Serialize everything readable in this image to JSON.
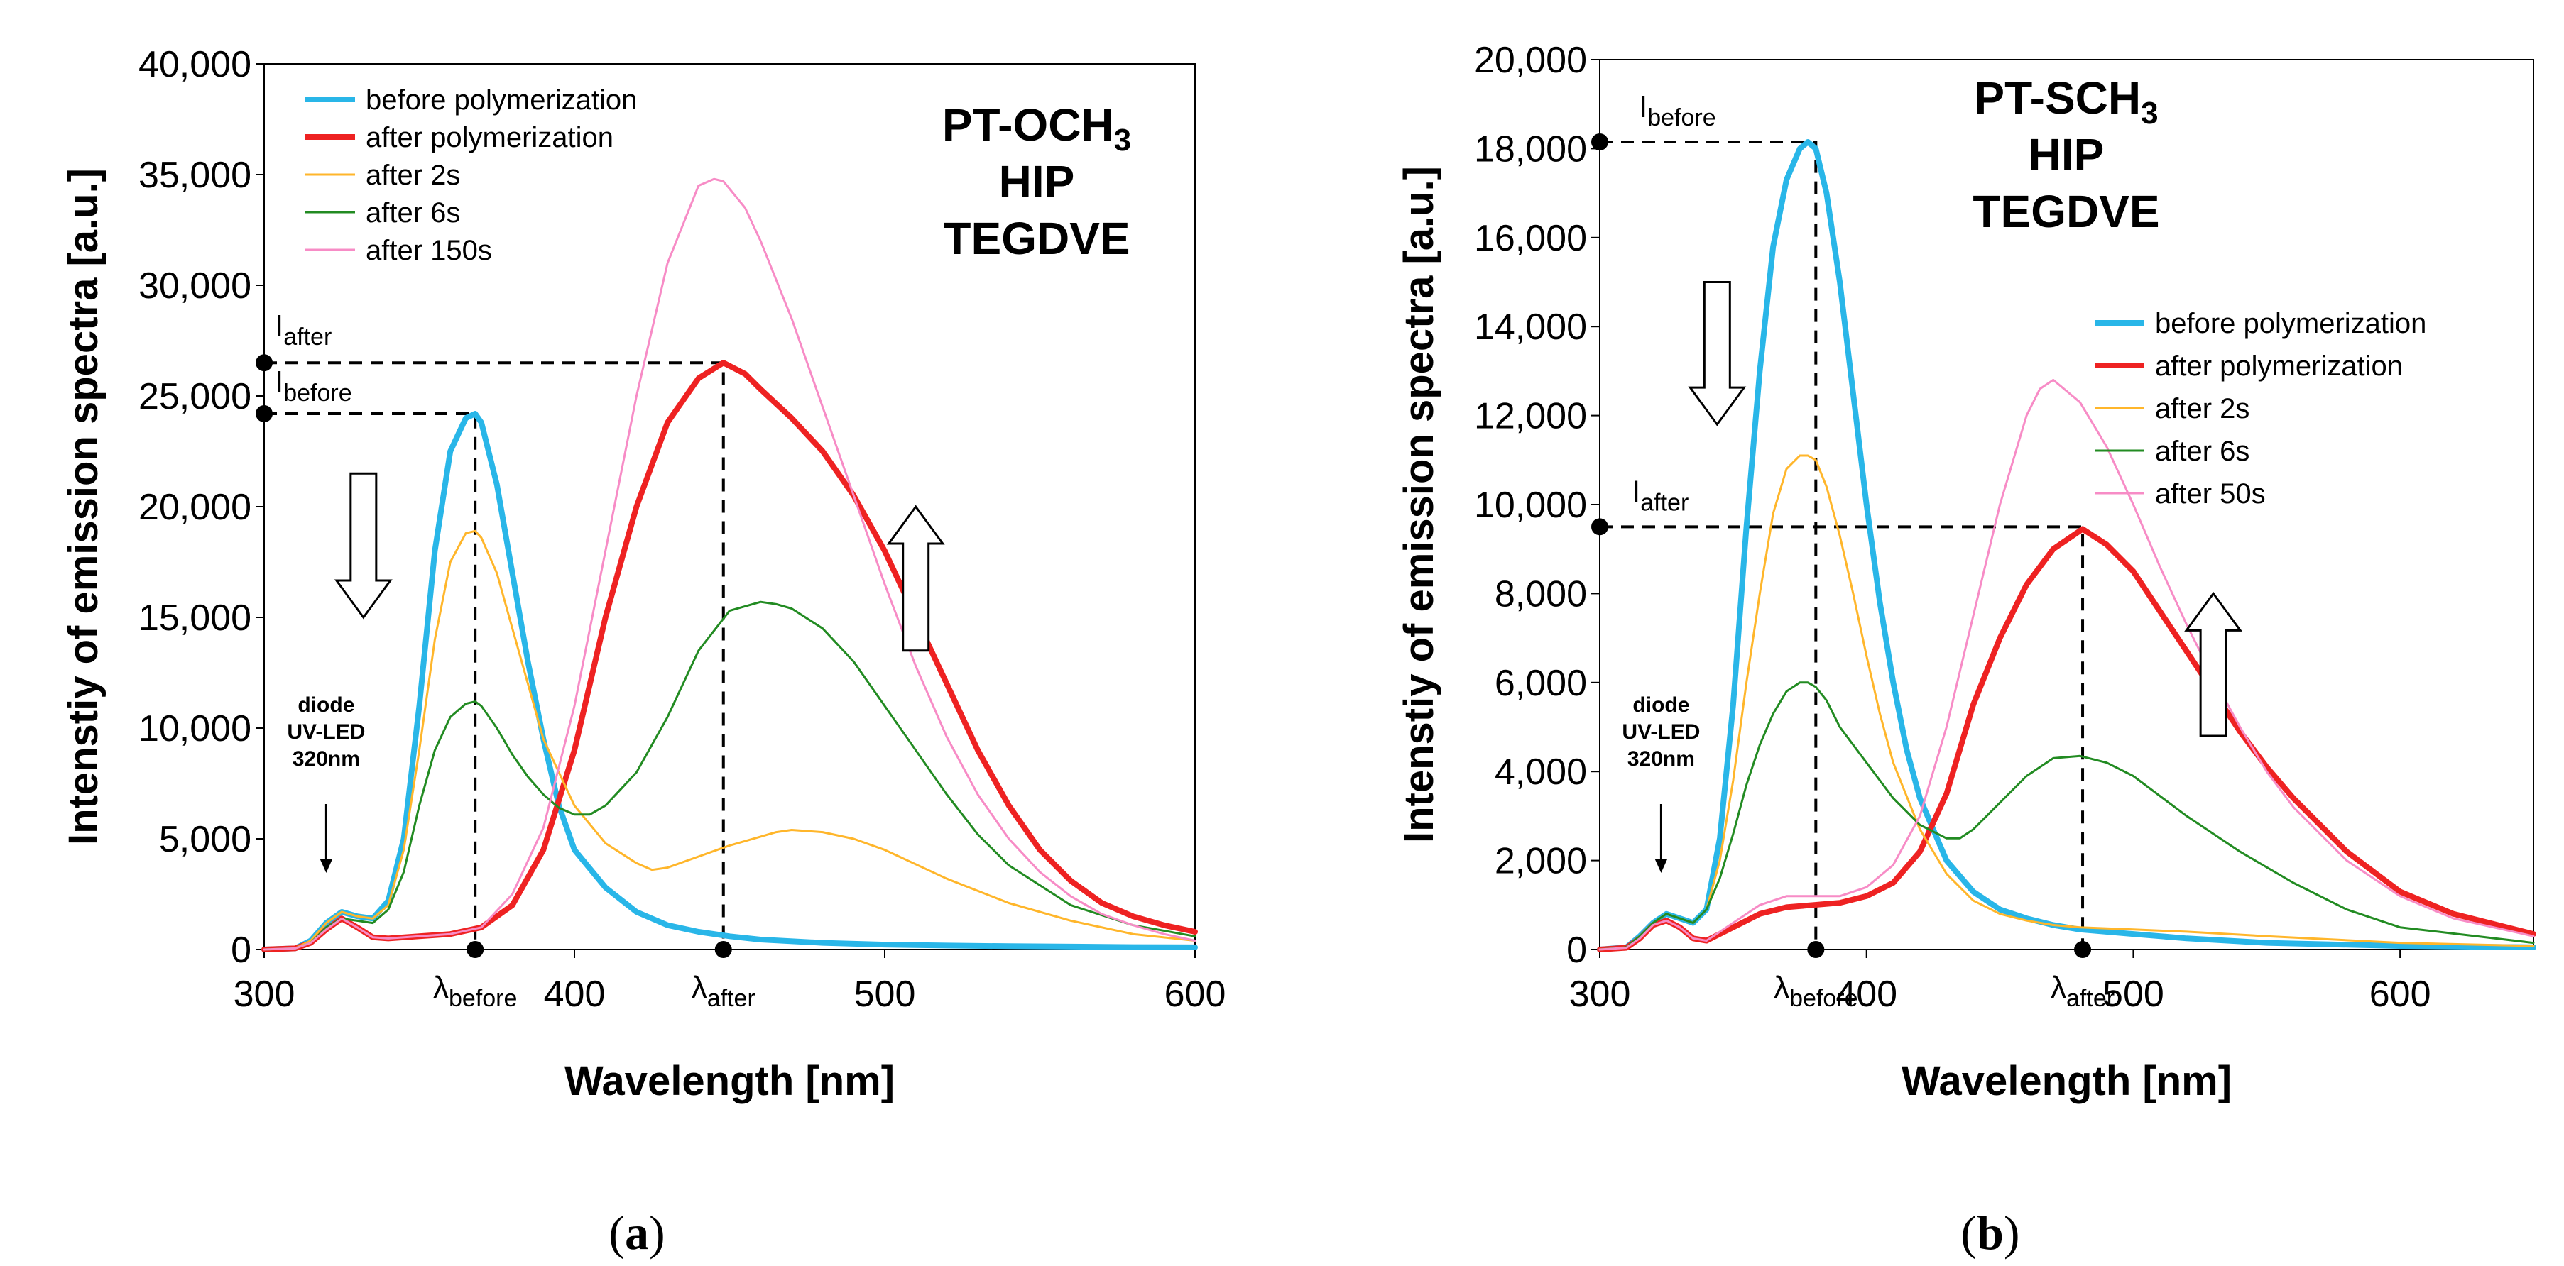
{
  "chart_data": [
    {
      "id": "a",
      "type": "line",
      "caption_open": "(",
      "caption": "a",
      "caption_close": ")",
      "xlabel": "Wavelength [nm]",
      "ylabel": "Intenstiy of emission spectra [a.u.]",
      "xlim": [
        300,
        600
      ],
      "ylim": [
        0,
        40000
      ],
      "xticks": [
        300,
        400,
        500,
        600
      ],
      "xtick_labels": [
        "300",
        "400",
        "500",
        "600"
      ],
      "yticks": [
        0,
        5000,
        10000,
        15000,
        20000,
        25000,
        30000,
        35000,
        40000
      ],
      "ytick_labels": [
        "0",
        "5,000",
        "10,000",
        "15,000",
        "20,000",
        "25,000",
        "30,000",
        "35,000",
        "40,000"
      ],
      "legend_position": "top-left",
      "sample_label": [
        "PT-OCH",
        "3",
        "HIP",
        "TEGDVE"
      ],
      "diode_label": [
        "diode",
        "UV-LED",
        "320nm"
      ],
      "diode_arrow_x": 320,
      "markers": {
        "before": {
          "x": 368,
          "y": 24200,
          "i_main": "I",
          "i_sub": "before",
          "l_main": "λ",
          "l_sub": "before"
        },
        "after": {
          "x": 448,
          "y": 26500,
          "i_main": "I",
          "i_sub": "after",
          "l_main": "λ",
          "l_sub": "after"
        }
      },
      "arrows": [
        {
          "dir": "down",
          "x": 332,
          "y_top": 21500,
          "y_bottom": 15000
        },
        {
          "dir": "up",
          "x": 510,
          "y_top": 20000,
          "y_bottom": 13500
        }
      ],
      "series": [
        {
          "name": "before polymerization",
          "color": "#29b6e8",
          "width": 8,
          "x": [
            300,
            310,
            315,
            320,
            325,
            330,
            335,
            340,
            345,
            350,
            355,
            360,
            365,
            368,
            370,
            375,
            380,
            385,
            390,
            395,
            400,
            410,
            420,
            430,
            440,
            450,
            460,
            480,
            500,
            520,
            540,
            560,
            580,
            600
          ],
          "y": [
            0,
            50,
            400,
            1200,
            1700,
            1500,
            1400,
            2200,
            5000,
            11000,
            18000,
            22500,
            24000,
            24200,
            23800,
            21000,
            17000,
            13000,
            9500,
            6500,
            4500,
            2800,
            1700,
            1100,
            800,
            600,
            450,
            300,
            220,
            180,
            150,
            130,
            110,
            100
          ]
        },
        {
          "name": "after polymerization",
          "color": "#ee2222",
          "width": 8,
          "x": [
            300,
            310,
            315,
            320,
            325,
            330,
            335,
            340,
            350,
            360,
            370,
            380,
            390,
            400,
            410,
            420,
            430,
            440,
            448,
            455,
            460,
            470,
            480,
            490,
            500,
            510,
            520,
            530,
            540,
            550,
            560,
            570,
            580,
            590,
            600
          ],
          "y": [
            0,
            50,
            300,
            900,
            1400,
            1000,
            550,
            500,
            600,
            700,
            1000,
            2000,
            4500,
            9000,
            15000,
            20000,
            23800,
            25800,
            26500,
            26000,
            25300,
            24000,
            22500,
            20500,
            18000,
            15000,
            12000,
            9000,
            6500,
            4500,
            3100,
            2100,
            1500,
            1100,
            800
          ]
        },
        {
          "name": "after 2s",
          "color": "#ffb62b",
          "width": 3,
          "x": [
            300,
            310,
            315,
            320,
            325,
            330,
            335,
            340,
            345,
            350,
            355,
            360,
            365,
            368,
            370,
            375,
            380,
            385,
            390,
            400,
            410,
            420,
            425,
            430,
            440,
            450,
            460,
            465,
            470,
            480,
            490,
            500,
            520,
            540,
            560,
            580,
            600
          ],
          "y": [
            0,
            50,
            400,
            1200,
            1700,
            1500,
            1400,
            2000,
            4500,
            9000,
            14000,
            17500,
            18800,
            18900,
            18600,
            17000,
            14500,
            12000,
            9500,
            6500,
            4800,
            3900,
            3600,
            3700,
            4200,
            4700,
            5100,
            5300,
            5400,
            5300,
            5000,
            4500,
            3200,
            2100,
            1300,
            700,
            400
          ]
        },
        {
          "name": "after 6s",
          "color": "#228b22",
          "width": 3,
          "x": [
            300,
            310,
            315,
            320,
            325,
            330,
            335,
            340,
            345,
            350,
            355,
            360,
            365,
            368,
            370,
            375,
            380,
            385,
            390,
            395,
            400,
            405,
            410,
            420,
            430,
            440,
            450,
            460,
            465,
            470,
            480,
            490,
            500,
            510,
            520,
            530,
            540,
            560,
            580,
            600
          ],
          "y": [
            0,
            50,
            300,
            1000,
            1400,
            1300,
            1200,
            1800,
            3500,
            6500,
            9000,
            10500,
            11100,
            11200,
            11000,
            10000,
            8800,
            7800,
            7000,
            6400,
            6100,
            6100,
            6500,
            8000,
            10500,
            13500,
            15300,
            15700,
            15600,
            15400,
            14500,
            13000,
            11000,
            9000,
            7000,
            5200,
            3800,
            2000,
            1100,
            600
          ]
        },
        {
          "name": "after 150s",
          "color": "#f78cc6",
          "width": 3,
          "x": [
            300,
            310,
            315,
            320,
            325,
            330,
            335,
            340,
            350,
            360,
            370,
            380,
            390,
            400,
            410,
            420,
            430,
            440,
            445,
            448,
            455,
            460,
            470,
            480,
            490,
            500,
            510,
            520,
            530,
            540,
            550,
            560,
            570,
            580,
            590,
            600
          ],
          "y": [
            0,
            50,
            300,
            900,
            1400,
            1000,
            550,
            500,
            600,
            700,
            1000,
            2500,
            5500,
            11000,
            18000,
            25000,
            31000,
            34500,
            34800,
            34700,
            33500,
            32000,
            28500,
            24500,
            20500,
            16500,
            12800,
            9600,
            7000,
            5000,
            3500,
            2400,
            1600,
            1100,
            700,
            400
          ]
        }
      ]
    },
    {
      "id": "b",
      "type": "line",
      "caption_open": "(",
      "caption": "b",
      "caption_close": ")",
      "xlabel": "Wavelength [nm]",
      "ylabel": "Intenstiy of emission spectra [a.u.]",
      "xlim": [
        300,
        650
      ],
      "ylim": [
        0,
        20000
      ],
      "xticks": [
        300,
        400,
        500,
        600
      ],
      "xtick_labels": [
        "300",
        "400",
        "500",
        "600"
      ],
      "yticks": [
        0,
        2000,
        4000,
        6000,
        8000,
        10000,
        12000,
        14000,
        16000,
        18000,
        20000
      ],
      "ytick_labels": [
        "0",
        "2,000",
        "4,000",
        "6,000",
        "8,000",
        "10,000",
        "12,000",
        "14,000",
        "16,000",
        "18,000",
        "20,000"
      ],
      "legend_position": "center-right",
      "sample_label": [
        "PT-SCH",
        "3",
        "HIP",
        "TEGDVE"
      ],
      "diode_label": [
        "diode",
        "UV-LED",
        "320nm"
      ],
      "diode_arrow_x": 323,
      "markers": {
        "before": {
          "x": 381,
          "y": 18150,
          "i_main": "I",
          "i_sub": "before",
          "l_main": "λ",
          "l_sub": "before"
        },
        "after": {
          "x": 481,
          "y": 9500,
          "i_main": "I",
          "i_sub": "after",
          "l_main": "λ",
          "l_sub": "after"
        }
      },
      "arrows": [
        {
          "dir": "down",
          "x": 344,
          "y_top": 15000,
          "y_bottom": 11800
        },
        {
          "dir": "up",
          "x": 530,
          "y_top": 8000,
          "y_bottom": 4800
        }
      ],
      "series": [
        {
          "name": "before polymerization",
          "color": "#29b6e8",
          "width": 8,
          "x": [
            300,
            310,
            315,
            320,
            325,
            330,
            335,
            340,
            345,
            350,
            355,
            360,
            365,
            370,
            375,
            378,
            381,
            385,
            390,
            395,
            400,
            405,
            410,
            415,
            420,
            430,
            440,
            450,
            460,
            470,
            480,
            500,
            520,
            550,
            600,
            650
          ],
          "y": [
            0,
            50,
            300,
            600,
            800,
            700,
            600,
            900,
            2500,
            5500,
            9500,
            13000,
            15800,
            17300,
            18000,
            18150,
            18000,
            17000,
            15000,
            12500,
            10000,
            7800,
            6000,
            4500,
            3400,
            2000,
            1300,
            900,
            700,
            550,
            450,
            350,
            250,
            150,
            80,
            50
          ]
        },
        {
          "name": "after polymerization",
          "color": "#ee2222",
          "width": 8,
          "x": [
            300,
            310,
            315,
            320,
            325,
            330,
            335,
            340,
            350,
            360,
            370,
            380,
            390,
            400,
            410,
            420,
            430,
            440,
            450,
            460,
            470,
            481,
            490,
            500,
            510,
            520,
            530,
            540,
            550,
            560,
            580,
            600,
            620,
            650
          ],
          "y": [
            0,
            40,
            250,
            550,
            650,
            500,
            250,
            200,
            500,
            800,
            950,
            1000,
            1050,
            1200,
            1500,
            2200,
            3500,
            5500,
            7000,
            8200,
            9000,
            9450,
            9100,
            8500,
            7600,
            6700,
            5800,
            4900,
            4100,
            3400,
            2200,
            1300,
            800,
            350
          ]
        },
        {
          "name": "after 2s",
          "color": "#ffb62b",
          "width": 3,
          "x": [
            300,
            310,
            315,
            320,
            325,
            330,
            335,
            340,
            345,
            350,
            355,
            360,
            365,
            370,
            375,
            378,
            381,
            385,
            390,
            395,
            400,
            405,
            410,
            420,
            430,
            440,
            450,
            460,
            470,
            480,
            500,
            520,
            550,
            600,
            650
          ],
          "y": [
            0,
            50,
            300,
            600,
            800,
            700,
            600,
            900,
            2000,
            3800,
            6000,
            8000,
            9800,
            10800,
            11100,
            11100,
            11000,
            10400,
            9300,
            8000,
            6600,
            5300,
            4200,
            2700,
            1700,
            1100,
            800,
            650,
            550,
            500,
            450,
            400,
            300,
            150,
            80
          ]
        },
        {
          "name": "after 6s",
          "color": "#228b22",
          "width": 3,
          "x": [
            300,
            310,
            315,
            320,
            325,
            330,
            335,
            340,
            345,
            350,
            355,
            360,
            365,
            370,
            375,
            378,
            381,
            385,
            390,
            400,
            410,
            420,
            430,
            435,
            440,
            450,
            460,
            470,
            480,
            490,
            500,
            520,
            540,
            560,
            580,
            600,
            650
          ],
          "y": [
            0,
            50,
            300,
            600,
            800,
            700,
            600,
            900,
            1600,
            2600,
            3700,
            4600,
            5300,
            5800,
            6000,
            6000,
            5900,
            5600,
            5000,
            4200,
            3400,
            2800,
            2500,
            2500,
            2700,
            3300,
            3900,
            4300,
            4350,
            4200,
            3900,
            3000,
            2200,
            1500,
            900,
            500,
            150
          ]
        },
        {
          "name": "after 50s",
          "color": "#f78cc6",
          "width": 3,
          "x": [
            300,
            310,
            315,
            320,
            325,
            330,
            335,
            340,
            350,
            360,
            370,
            380,
            390,
            400,
            410,
            420,
            430,
            440,
            450,
            460,
            465,
            470,
            480,
            490,
            500,
            510,
            520,
            530,
            540,
            550,
            560,
            580,
            600,
            620,
            650
          ],
          "y": [
            0,
            40,
            250,
            550,
            650,
            500,
            250,
            200,
            600,
            1000,
            1200,
            1200,
            1200,
            1400,
            1900,
            3000,
            5000,
            7500,
            10000,
            12000,
            12600,
            12800,
            12300,
            11300,
            10000,
            8600,
            7300,
            6100,
            5000,
            4000,
            3200,
            2000,
            1200,
            700,
            300
          ]
        }
      ]
    }
  ]
}
